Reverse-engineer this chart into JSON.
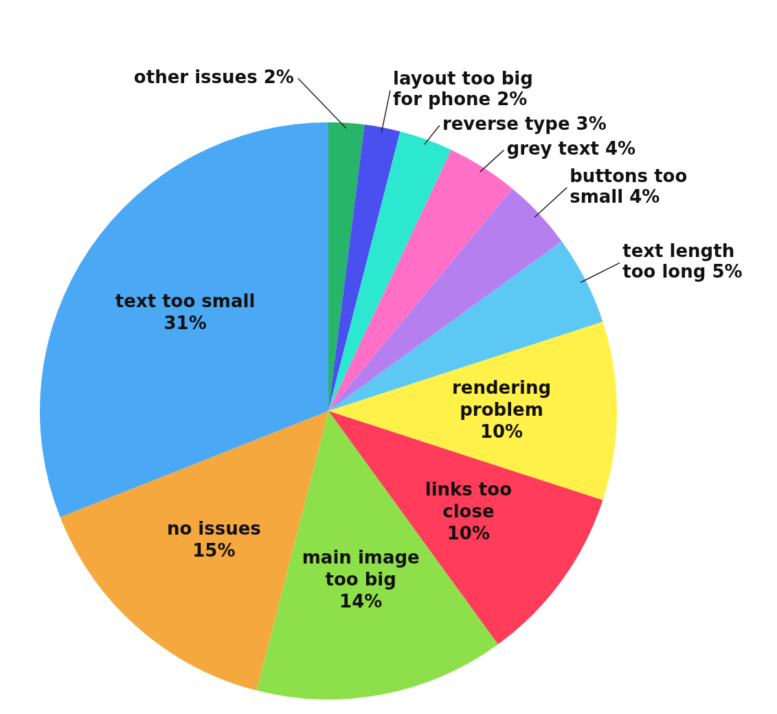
{
  "chart_data": {
    "type": "pie",
    "categories": [
      "other issues",
      "layout too big for phone",
      "reverse type",
      "grey text",
      "buttons too small",
      "text length too long",
      "rendering problem",
      "links too close",
      "main image too big",
      "no issues",
      "text too small"
    ],
    "values": [
      2,
      2,
      3,
      4,
      4,
      5,
      10,
      10,
      14,
      15,
      31
    ],
    "value_labels": [
      "2%",
      "2%",
      "3%",
      "4%",
      "4%",
      "5%",
      "10%",
      "10%",
      "14%",
      "15%",
      "31%"
    ],
    "colors": [
      "#27b56a",
      "#4a4ff0",
      "#2de8d0",
      "#ff6ec7",
      "#b57ff0",
      "#5ec8f5",
      "#fff04a",
      "#ff3d5a",
      "#8ee04a",
      "#f5a83d",
      "#4aa8f5"
    ],
    "legend": false
  }
}
